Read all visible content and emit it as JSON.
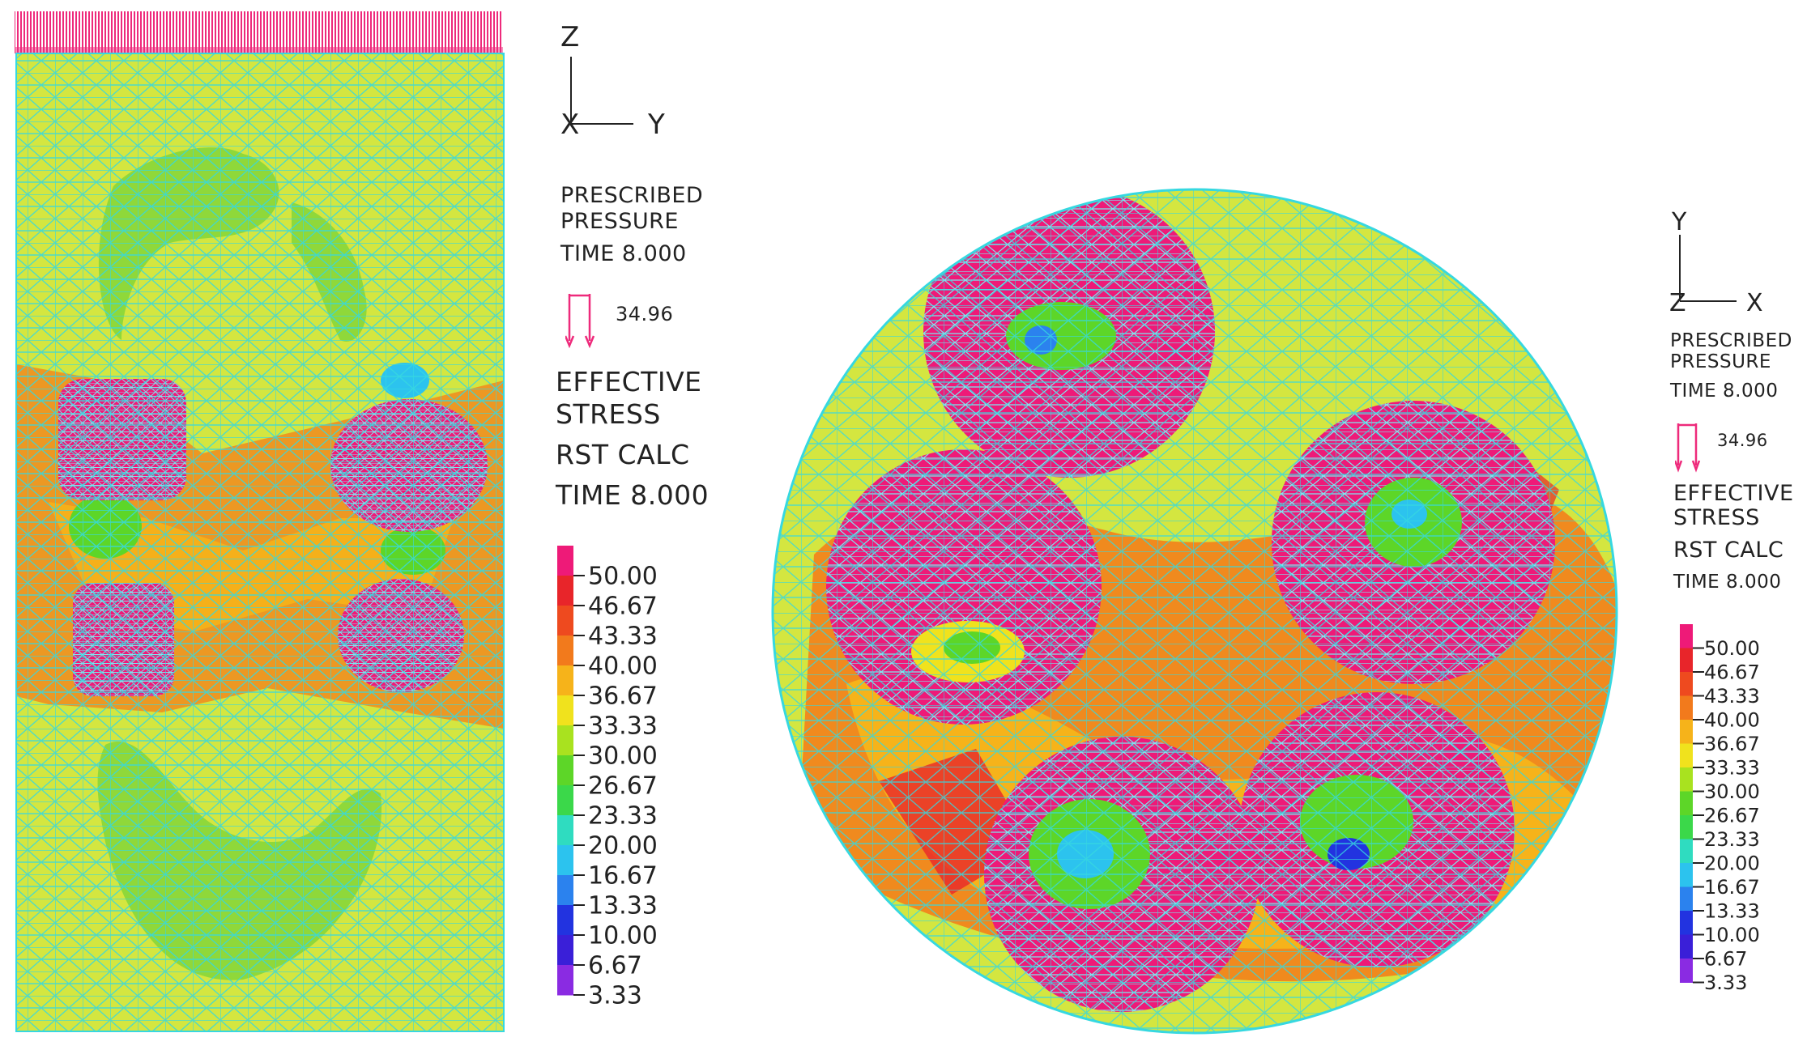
{
  "left": {
    "axis": {
      "vertical": "Z",
      "horizontal": "Y",
      "out": "X"
    },
    "prescribed": [
      "PRESCRIBED",
      "PRESSURE"
    ],
    "time_line": "TIME 8.000",
    "pressure_value": "34.96",
    "result_lines": [
      "EFFECTIVE",
      "STRESS",
      "RST CALC",
      "TIME 8.000"
    ]
  },
  "right": {
    "axis": {
      "vertical": "Y",
      "horizontal": "X",
      "out": "Z"
    },
    "prescribed": [
      "PRESCRIBED",
      "PRESSURE"
    ],
    "time_line": "TIME 8.000",
    "pressure_value": "34.96",
    "result_lines": [
      "EFFECTIVE",
      "STRESS",
      "RST CALC",
      "TIME 8.000"
    ]
  },
  "legend": {
    "labels": [
      "50.00",
      "46.67",
      "43.33",
      "40.00",
      "36.67",
      "33.33",
      "30.00",
      "26.67",
      "23.33",
      "20.00",
      "16.67",
      "13.33",
      "10.00",
      "6.67",
      "3.33"
    ],
    "colors": [
      "#ee1a78",
      "#e8252a",
      "#ee4a1f",
      "#f27a1c",
      "#f6b31a",
      "#f0e21d",
      "#a9e21f",
      "#5dd628",
      "#3bd84a",
      "#2fdcc0",
      "#2cc3ee",
      "#2b82ee",
      "#2233e0",
      "#3a1fd8",
      "#8a2be2"
    ]
  },
  "colors": {
    "field_yellow": "#d4e640",
    "field_green": "#8fd83a",
    "field_orange": "#f08a1e",
    "inclusion": "#ee1a78",
    "mesh": "#36d8e0",
    "load_arrow": "#ee2a7b"
  }
}
